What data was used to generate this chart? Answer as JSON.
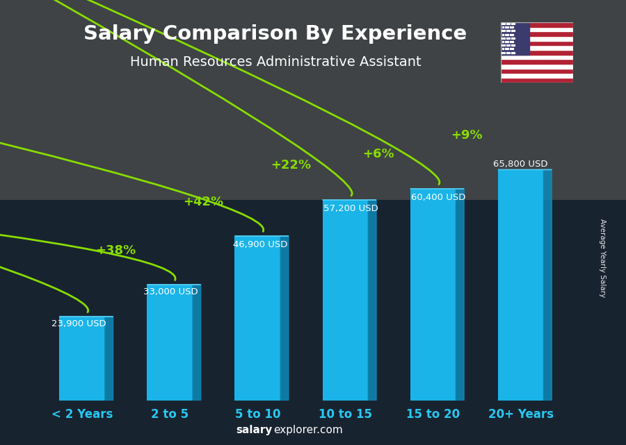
{
  "title": "Salary Comparison By Experience",
  "subtitle": "Human Resources Administrative Assistant",
  "categories": [
    "< 2 Years",
    "2 to 5",
    "5 to 10",
    "10 to 15",
    "15 to 20",
    "20+ Years"
  ],
  "values": [
    23900,
    33000,
    46900,
    57200,
    60400,
    65800
  ],
  "labels": [
    "23,900 USD",
    "33,000 USD",
    "46,900 USD",
    "57,200 USD",
    "60,400 USD",
    "65,800 USD"
  ],
  "pct_labels": [
    "+38%",
    "+42%",
    "+22%",
    "+6%",
    "+9%"
  ],
  "bar_color_top": "#29c8f0",
  "bar_color_main": "#1ab0e0",
  "bar_color_face": "#00aadd",
  "bg_dark": "#1a2535",
  "title_color": "#ffffff",
  "subtitle_color": "#ffffff",
  "label_color": "#ffffff",
  "pct_color": "#88dd00",
  "arrow_color": "#88dd00",
  "xticklabel_color": "#29c8f0",
  "watermark_bold": "salary",
  "watermark_normal": "explorer.com",
  "ylabel_text": "Average Yearly Salary",
  "ylim": [
    0,
    85000
  ],
  "figsize": [
    9.0,
    6.41
  ],
  "dpi": 100
}
